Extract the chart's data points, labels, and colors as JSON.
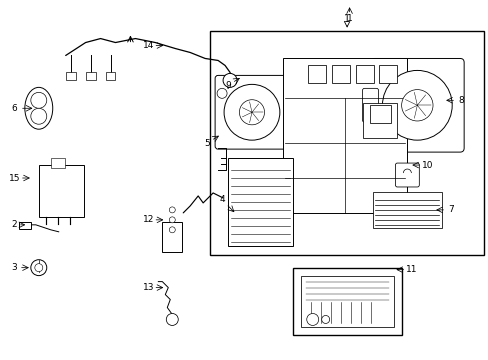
{
  "background_color": "#ffffff",
  "line_color": "#000000",
  "text_color": "#000000",
  "fig_width": 4.89,
  "fig_height": 3.6,
  "dpi": 100
}
